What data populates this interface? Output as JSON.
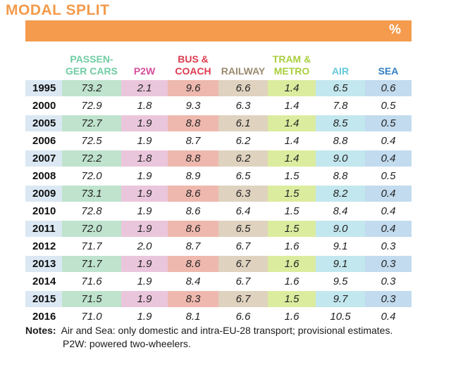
{
  "title": "MODAL SPLIT",
  "unit": "%",
  "columns": [
    {
      "label": "PASSEN-\nGER CARS",
      "color": "#6fcca3"
    },
    {
      "label": "P2W",
      "color": "#d44f9c"
    },
    {
      "label": "BUS &\nCOACH",
      "color": "#dd3b4f"
    },
    {
      "label": "RAILWAY",
      "color": "#9a8a6e"
    },
    {
      "label": "TRAM &\nMETRO",
      "color": "#a9cf3d"
    },
    {
      "label": "AIR",
      "color": "#63c8dd"
    },
    {
      "label": "SEA",
      "color": "#2f7fc3"
    }
  ],
  "rows": [
    {
      "year": "1995",
      "values": [
        "73.2",
        "2.1",
        "9.6",
        "6.6",
        "1.4",
        "6.5",
        "0.6"
      ]
    },
    {
      "year": "2000",
      "values": [
        "72.9",
        "1.8",
        "9.3",
        "6.3",
        "1.4",
        "7.8",
        "0.5"
      ]
    },
    {
      "year": "2005",
      "values": [
        "72.7",
        "1.9",
        "8.8",
        "6.1",
        "1.4",
        "8.5",
        "0.5"
      ]
    },
    {
      "year": "2006",
      "values": [
        "72.5",
        "1.9",
        "8.7",
        "6.2",
        "1.4",
        "8.8",
        "0.4"
      ]
    },
    {
      "year": "2007",
      "values": [
        "72.2",
        "1.8",
        "8.8",
        "6.2",
        "1.4",
        "9.0",
        "0.4"
      ]
    },
    {
      "year": "2008",
      "values": [
        "72.0",
        "1.9",
        "8.9",
        "6.5",
        "1.5",
        "8.8",
        "0.5"
      ]
    },
    {
      "year": "2009",
      "values": [
        "73.1",
        "1.9",
        "8.6",
        "6.3",
        "1.5",
        "8.2",
        "0.4"
      ]
    },
    {
      "year": "2010",
      "values": [
        "72.8",
        "1.9",
        "8.6",
        "6.4",
        "1.5",
        "8.4",
        "0.4"
      ]
    },
    {
      "year": "2011",
      "values": [
        "72.0",
        "1.9",
        "8.6",
        "6.5",
        "1.5",
        "9.0",
        "0.4"
      ]
    },
    {
      "year": "2012",
      "values": [
        "71.7",
        "2.0",
        "8.7",
        "6.7",
        "1.6",
        "9.1",
        "0.3"
      ]
    },
    {
      "year": "2013",
      "values": [
        "71.7",
        "1.9",
        "8.6",
        "6.7",
        "1.6",
        "9.1",
        "0.3"
      ]
    },
    {
      "year": "2014",
      "values": [
        "71.6",
        "1.9",
        "8.4",
        "6.7",
        "1.6",
        "9.5",
        "0.3"
      ]
    },
    {
      "year": "2015",
      "values": [
        "71.5",
        "1.9",
        "8.3",
        "6.7",
        "1.5",
        "9.7",
        "0.3"
      ]
    },
    {
      "year": "2016",
      "values": [
        "71.0",
        "1.9",
        "8.1",
        "6.6",
        "1.6",
        "10.5",
        "0.4"
      ]
    }
  ],
  "notes": {
    "label": "Notes:",
    "line1": "Air and Sea: only domestic and intra-EU-28 transport; provisional estimates.",
    "line2": "P2W: powered two-wheelers."
  },
  "chart_data": {
    "type": "table",
    "title": "MODAL SPLIT",
    "unit": "%",
    "columns": [
      "PASSENGER CARS",
      "P2W",
      "BUS & COACH",
      "RAILWAY",
      "TRAM & METRO",
      "AIR",
      "SEA"
    ],
    "x": [
      "1995",
      "2000",
      "2005",
      "2006",
      "2007",
      "2008",
      "2009",
      "2010",
      "2011",
      "2012",
      "2013",
      "2014",
      "2015",
      "2016"
    ],
    "series": [
      {
        "name": "PASSENGER CARS",
        "values": [
          73.2,
          72.9,
          72.7,
          72.5,
          72.2,
          72.0,
          73.1,
          72.8,
          72.0,
          71.7,
          71.7,
          71.6,
          71.5,
          71.0
        ]
      },
      {
        "name": "P2W",
        "values": [
          2.1,
          1.8,
          1.9,
          1.9,
          1.8,
          1.9,
          1.9,
          1.9,
          1.9,
          2.0,
          1.9,
          1.9,
          1.9,
          1.9
        ]
      },
      {
        "name": "BUS & COACH",
        "values": [
          9.6,
          9.3,
          8.8,
          8.7,
          8.8,
          8.9,
          8.6,
          8.6,
          8.6,
          8.7,
          8.6,
          8.4,
          8.3,
          8.1
        ]
      },
      {
        "name": "RAILWAY",
        "values": [
          6.6,
          6.3,
          6.1,
          6.2,
          6.2,
          6.5,
          6.3,
          6.4,
          6.5,
          6.7,
          6.7,
          6.7,
          6.7,
          6.6
        ]
      },
      {
        "name": "TRAM & METRO",
        "values": [
          1.4,
          1.4,
          1.4,
          1.4,
          1.4,
          1.5,
          1.5,
          1.5,
          1.5,
          1.6,
          1.6,
          1.6,
          1.5,
          1.6
        ]
      },
      {
        "name": "AIR",
        "values": [
          6.5,
          7.8,
          8.5,
          8.8,
          9.0,
          8.8,
          8.2,
          8.4,
          9.0,
          9.1,
          9.1,
          9.5,
          9.7,
          10.5
        ]
      },
      {
        "name": "SEA",
        "values": [
          0.6,
          0.5,
          0.5,
          0.4,
          0.4,
          0.5,
          0.4,
          0.4,
          0.4,
          0.3,
          0.3,
          0.3,
          0.3,
          0.4
        ]
      }
    ]
  }
}
